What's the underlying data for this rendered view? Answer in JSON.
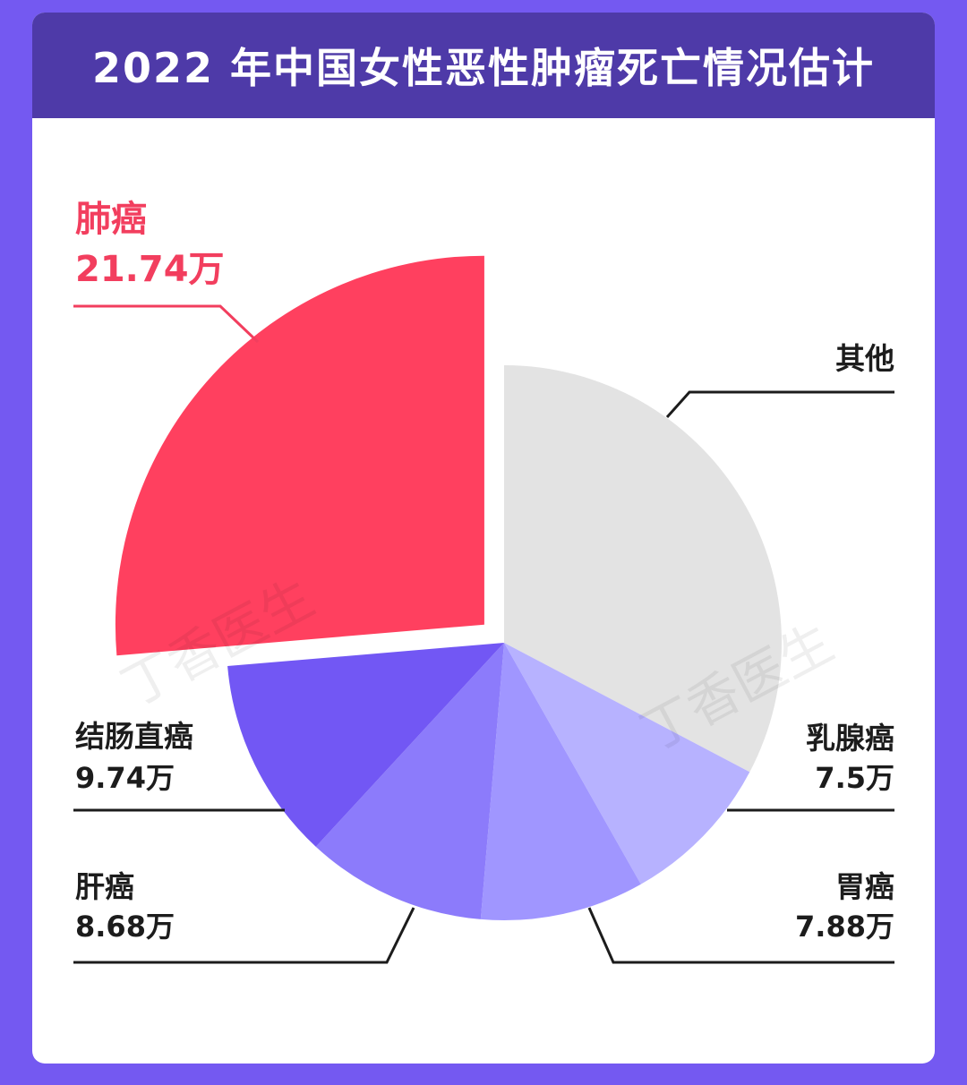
{
  "chart_data": {
    "type": "pie",
    "title": "2022 年中国女性恶性肿瘤死亡情况估计",
    "unit": "万",
    "slices": [
      {
        "name": "肺癌",
        "value": 21.74,
        "label": "21.74万",
        "color": "#ff405f",
        "exploded": true
      },
      {
        "name": "其他",
        "value": 27.0,
        "label": "",
        "color": "#e3e3e3",
        "exploded": false
      },
      {
        "name": "乳腺癌",
        "value": 7.5,
        "label": "7.5万",
        "color": "#b7b2ff",
        "exploded": false
      },
      {
        "name": "胃癌",
        "value": 7.88,
        "label": "7.88万",
        "color": "#a096ff",
        "exploded": false
      },
      {
        "name": "肝癌",
        "value": 8.68,
        "label": "8.68万",
        "color": "#8c7bfb",
        "exploded": false
      },
      {
        "name": "结肠直癌",
        "value": 9.74,
        "label": "9.74万",
        "color": "#7257f4",
        "exploded": false
      }
    ]
  },
  "watermark": "丁香医生"
}
